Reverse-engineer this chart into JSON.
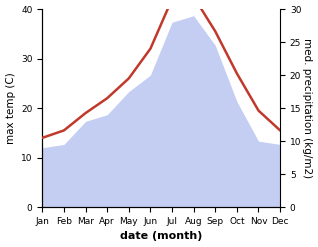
{
  "months": [
    "Jan",
    "Feb",
    "Mar",
    "Apr",
    "May",
    "Jun",
    "Jul",
    "Aug",
    "Sep",
    "Oct",
    "Nov",
    "Dec"
  ],
  "max_temp": [
    14.0,
    15.5,
    19.0,
    22.0,
    26.0,
    32.0,
    42.0,
    42.5,
    35.5,
    27.0,
    19.5,
    15.5
  ],
  "precipitation": [
    9.0,
    9.5,
    13.0,
    14.0,
    17.5,
    20.0,
    28.0,
    29.0,
    24.5,
    16.0,
    10.0,
    9.5
  ],
  "temp_ylim": [
    0,
    40
  ],
  "precip_ylim": [
    0,
    30
  ],
  "temp_color": "#c0392b",
  "precip_fill_color": "#b0bef0",
  "precip_fill_alpha": 0.75,
  "xlabel": "date (month)",
  "ylabel_left": "max temp (C)",
  "ylabel_right": "med. precipitation (kg/m2)",
  "temp_yticks": [
    0,
    10,
    20,
    30,
    40
  ],
  "precip_yticks": [
    0,
    5,
    10,
    15,
    20,
    25,
    30
  ],
  "label_fontsize": 7.5,
  "tick_fontsize": 6.5,
  "xlabel_fontsize": 8,
  "linewidth": 1.8
}
